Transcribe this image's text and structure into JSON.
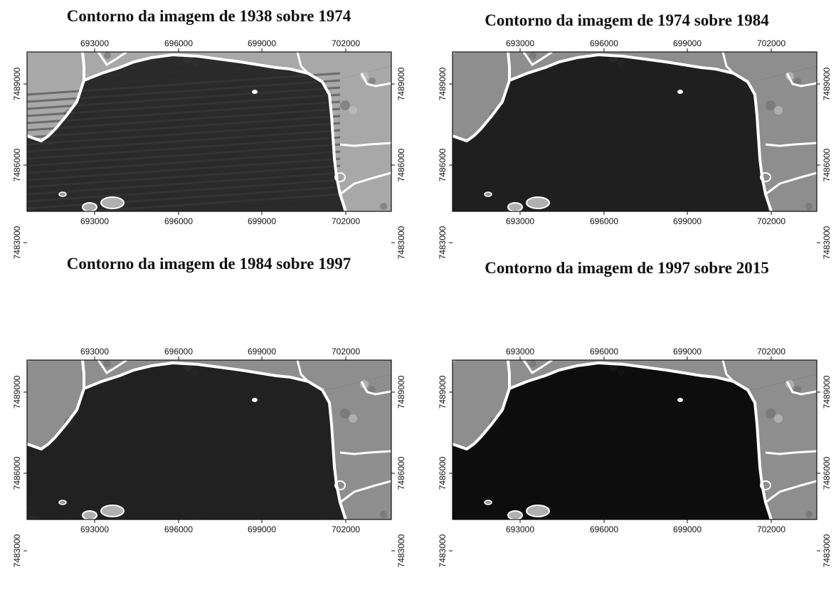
{
  "panels": [
    {
      "title": "Contorno da imagem de 1938 sobre 1974",
      "x_ticks": [
        "693000",
        "696000",
        "699000",
        "702000"
      ],
      "y_ticks": [
        "7489000",
        "7486000",
        "7483000"
      ],
      "tone": "dark-stripes"
    },
    {
      "title": "Contorno da imagem de 1974 sobre 1984",
      "x_ticks": [
        "693000",
        "696000",
        "699000",
        "702000"
      ],
      "y_ticks": [
        "7489000",
        "7486000",
        "7483000"
      ],
      "tone": "noise"
    },
    {
      "title": "Contorno da imagem de 1984 sobre 1997",
      "x_ticks": [
        "693000",
        "696000",
        "699000",
        "702000"
      ],
      "y_ticks": [
        "7489000",
        "7486000",
        "7483000"
      ],
      "tone": "smooth"
    },
    {
      "title": "Contorno da imagem de 1997 sobre 2015",
      "x_ticks": [
        "693000",
        "696000",
        "699000",
        "702000"
      ],
      "y_ticks": [
        "7489000",
        "7486000",
        "7483000"
      ],
      "tone": "black"
    }
  ],
  "colors": {
    "water_1938": "#2a2a2a",
    "water_1974": "#1f1f1f",
    "water_1984": "#222222",
    "water_1997": "#0d0d0d",
    "land": "#9a9a9a",
    "contour": "#ffffff"
  }
}
